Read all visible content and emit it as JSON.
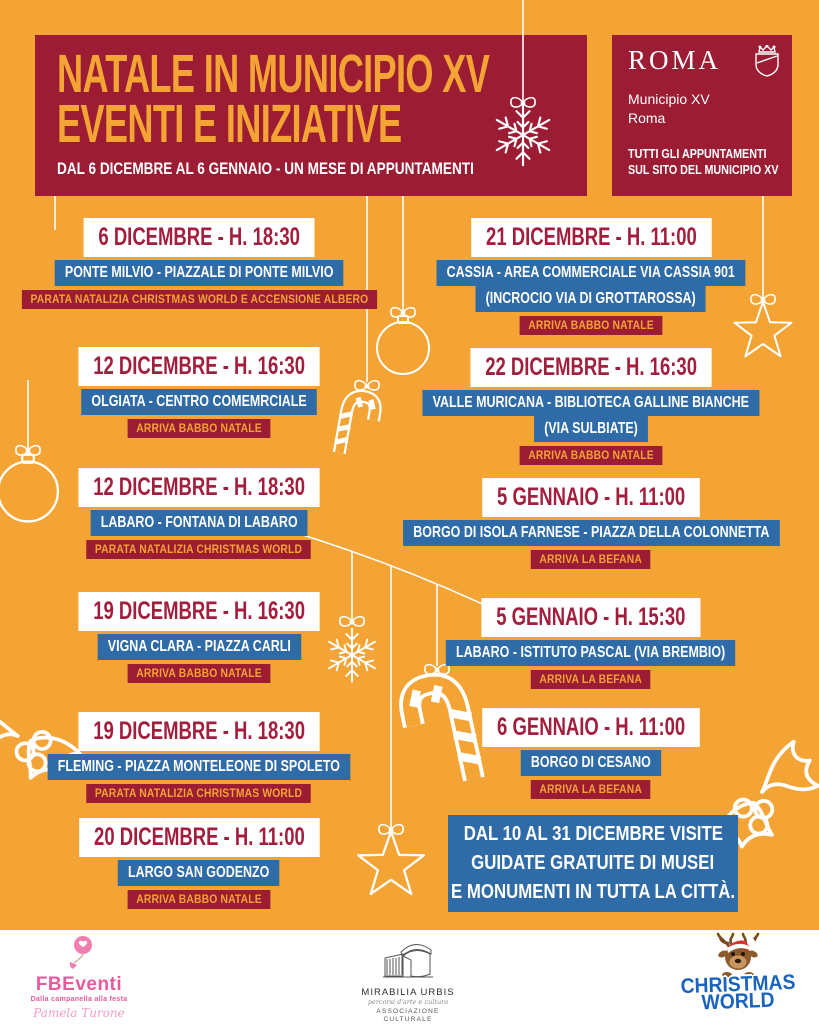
{
  "header": {
    "title_line1": "NATALE IN MUNICIPIO XV",
    "title_line2": "EVENTI E INIZIATIVE",
    "subtitle": "DAL 6 DICEMBRE AL 6 GENNAIO - UN MESE DI APPUNTAMENTI",
    "brand": {
      "name": "ROMA",
      "sub_line1": "Municipio XV",
      "sub_line2": "Roma",
      "shield_icon": "spqr-shield-crown-icon",
      "note_line1": "TUTTI GLI APPUNTAMENTI",
      "note_line2": "SUL SITO DEL MUNICIPIO XV"
    }
  },
  "colors": {
    "background_orange": "#F3A435",
    "dark_red": "#9C1C33",
    "date_red": "#A31E3C",
    "blue": "#2E6BA7",
    "white": "#FFFFFF",
    "fbeventi_pink": "#E75A9E",
    "christmas_world_blue": "#1A64BE"
  },
  "events": {
    "left": [
      {
        "date": "6 DICEMBRE - H. 18:30",
        "location_lines": [
          "PONTE MILVIO - PIAZZALE DI PONTE MILVIO"
        ],
        "type": "PARATA NATALIZIA CHRISTMAS WORLD E ACCENSIONE ALBERO"
      },
      {
        "date": "12 DICEMBRE - H. 16:30",
        "location_lines": [
          "OLGIATA - CENTRO COMEMRCIALE"
        ],
        "type": "ARRIVA BABBO NATALE"
      },
      {
        "date": "12 DICEMBRE - H. 18:30",
        "location_lines": [
          "LABARO - FONTANA DI LABARO"
        ],
        "type": "PARATA NATALIZIA CHRISTMAS WORLD"
      },
      {
        "date": "19 DICEMBRE - H. 16:30",
        "location_lines": [
          "VIGNA CLARA - PIAZZA CARLI"
        ],
        "type": "ARRIVA BABBO NATALE"
      },
      {
        "date": "19 DICEMBRE - H. 18:30",
        "location_lines": [
          "FLEMING - PIAZZA MONTELEONE DI SPOLETO"
        ],
        "type": "PARATA NATALIZIA CHRISTMAS WORLD"
      },
      {
        "date": "20 DICEMBRE - H. 11:00",
        "location_lines": [
          "LARGO SAN GODENZO"
        ],
        "type": "ARRIVA BABBO NATALE"
      }
    ],
    "right": [
      {
        "date": "21 DICEMBRE - H. 11:00",
        "location_lines": [
          "CASSIA - AREA COMMERCIALE VIA CASSIA 901",
          "(INCROCIO VIA DI GROTTAROSSA)"
        ],
        "type": "ARRIVA BABBO NATALE"
      },
      {
        "date": "22 DICEMBRE - H. 16:30",
        "location_lines": [
          "VALLE MURICANA - BIBLIOTECA GALLINE BIANCHE",
          "(VIA SULBIATE)"
        ],
        "type": "ARRIVA BABBO NATALE"
      },
      {
        "date": "5 GENNAIO - H. 11:00",
        "location_lines": [
          "BORGO DI ISOLA FARNESE - PIAZZA DELLA COLONNETTA"
        ],
        "type": "ARRIVA LA BEFANA"
      },
      {
        "date": "5 GENNAIO - H. 15:30",
        "location_lines": [
          "LABARO - ISTITUTO PASCAL (VIA BREMBIO)"
        ],
        "type": "ARRIVA LA BEFANA"
      },
      {
        "date": "6 GENNAIO - H. 11:00",
        "location_lines": [
          "BORGO DI CESANO"
        ],
        "type": "ARRIVA LA BEFANA"
      }
    ]
  },
  "notice": {
    "lines": [
      "DAL 10 AL 31 DICEMBRE VISITE",
      "GUIDATE GRATUITE DI MUSEI",
      "E MONUMENTI IN TUTTA LA CITTÀ."
    ]
  },
  "footer": {
    "fbeventi": {
      "name": "FBEventi",
      "tagline": "Dalla campanella alla festa",
      "signature": "Pamela Turone",
      "icon": "pink-balloon-icon"
    },
    "mirabilia": {
      "name": "MIRABILIA URBIS",
      "tagline": "percorsi d'arte e cultura",
      "subtitle": "ASSOCIAZIONE CULTURALE",
      "icon": "pantheon-sketch-icon"
    },
    "christmas_world": {
      "line1": "CHRISTMAS",
      "line2": "WORLD",
      "icon": "reindeer-santa-hat-icon"
    }
  },
  "decorations": [
    "snowflake-icon",
    "bauble-ornament-icon",
    "candy-cane-icon",
    "star-ornament-icon",
    "holly-icon",
    "hanging-string",
    "giant-bauble-arc"
  ]
}
